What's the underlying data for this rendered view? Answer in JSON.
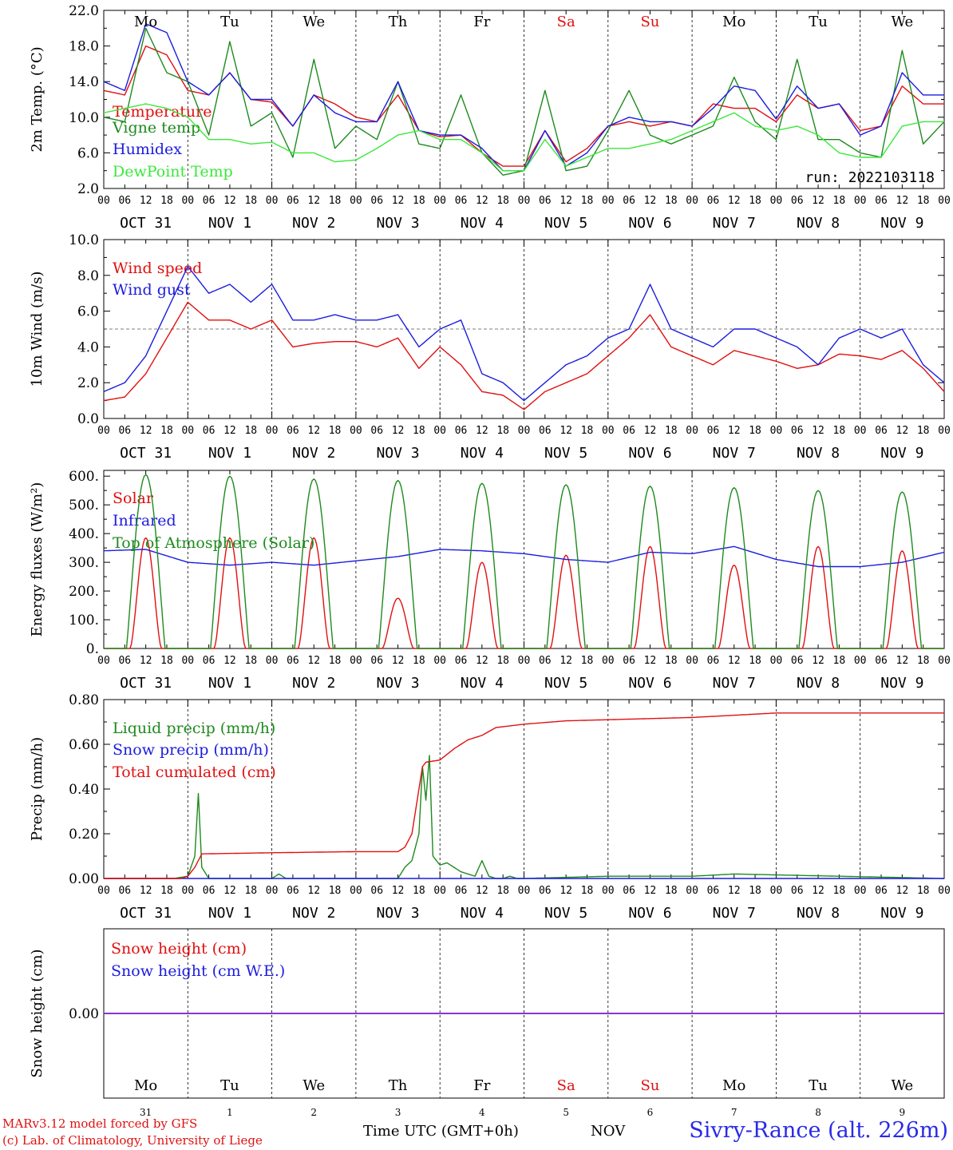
{
  "colors": {
    "red": "#e01010",
    "blue": "#1c1ce0",
    "green": "#1e8a1e",
    "lightgreen": "#3ce83c",
    "purple": "#8a2be2",
    "weekend": "#e01010",
    "weekday": "#000000"
  },
  "days": {
    "names": [
      "Mo",
      "Tu",
      "We",
      "Th",
      "Fr",
      "Sa",
      "Su",
      "Mo",
      "Tu",
      "We"
    ],
    "weekend": [
      false,
      false,
      false,
      false,
      false,
      true,
      true,
      false,
      false,
      false
    ],
    "dates": [
      "OCT 31",
      "NOV  1",
      "NOV  2",
      "NOV  3",
      "NOV  4",
      "NOV  5",
      "NOV  6",
      "NOV  7",
      "NOV  8",
      "NOV  9"
    ],
    "day_numbers": [
      "31",
      "1",
      "2",
      "3",
      "4",
      "5",
      "6",
      "7",
      "8",
      "9"
    ],
    "hour_ticks": [
      "00",
      "06",
      "12",
      "18"
    ],
    "end_tick": "00"
  },
  "footer": {
    "credit_line1": "MARv3.12 model forced by GFS",
    "credit_line2": "(c) Lab. of Climatology, University of Liege",
    "time_label": "Time UTC (GMT+0h)",
    "month": "NOV",
    "station": "Sivry-Rance (alt. 226m)"
  },
  "chart_data": [
    {
      "id": "temp",
      "type": "line",
      "ylabel": "2m Temp. (°C)",
      "ylim": [
        2.0,
        22.0
      ],
      "yticks": [
        "2.0",
        "6.0",
        "10.0",
        "14.0",
        "18.0",
        "22.0"
      ],
      "annotation": "run: 2022103118",
      "series": [
        {
          "name": "Temperature",
          "color": "red",
          "x": [
            0,
            6,
            12,
            18,
            24,
            30,
            36,
            42,
            48,
            54,
            60,
            66,
            72,
            78,
            84,
            90,
            96,
            102,
            108,
            114,
            120,
            126,
            132,
            138,
            144,
            150,
            156,
            162,
            168,
            174,
            180,
            186,
            192,
            198,
            204,
            210,
            216,
            222,
            228,
            234,
            240
          ],
          "values": [
            13,
            12.5,
            18,
            17,
            13,
            12.5,
            15,
            12,
            11.7,
            9,
            12.5,
            11.5,
            10,
            9.5,
            12.5,
            8.5,
            7.8,
            8,
            6,
            4.5,
            4.5,
            8.5,
            5,
            6.5,
            9,
            9.5,
            9,
            9.5,
            9,
            11.5,
            11,
            11,
            9.5,
            12.5,
            11,
            11.5,
            8.5,
            9,
            13.5,
            11.5,
            11.5
          ]
        },
        {
          "name": "Vigne temp",
          "color": "green",
          "x": [
            0,
            6,
            12,
            18,
            24,
            30,
            36,
            42,
            48,
            54,
            60,
            66,
            72,
            78,
            84,
            90,
            96,
            102,
            108,
            114,
            120,
            126,
            132,
            138,
            144,
            150,
            156,
            162,
            168,
            174,
            180,
            186,
            192,
            198,
            204,
            210,
            216,
            222,
            228,
            234,
            240
          ],
          "values": [
            10,
            9.5,
            20,
            15,
            14,
            8,
            18.5,
            9,
            10.5,
            5.5,
            16.5,
            6.5,
            9,
            7.5,
            14,
            7,
            6.5,
            12.5,
            6,
            3.5,
            4,
            13,
            4,
            4.5,
            8.5,
            13,
            8,
            7,
            8,
            9,
            14.5,
            9.5,
            7.5,
            16.5,
            7.5,
            7.5,
            6,
            5.5,
            17.5,
            7,
            9.5
          ]
        },
        {
          "name": "Humidex",
          "color": "blue",
          "x": [
            0,
            6,
            12,
            18,
            24,
            30,
            36,
            42,
            48,
            54,
            60,
            66,
            72,
            78,
            84,
            90,
            96,
            102,
            108,
            114,
            120,
            126,
            132,
            138,
            144,
            150,
            156,
            162,
            168,
            174,
            180,
            186,
            192,
            198,
            204,
            210,
            216,
            222,
            228,
            234,
            240
          ],
          "values": [
            14,
            13,
            20.5,
            19.5,
            14,
            12.5,
            15,
            12,
            12,
            9,
            12.5,
            10.5,
            9.5,
            9.5,
            14,
            8.5,
            8,
            8,
            6.5,
            4,
            4,
            8.5,
            4.5,
            6,
            9,
            10,
            9.5,
            9.5,
            9,
            11,
            13.5,
            13,
            9.8,
            13.5,
            11,
            11.5,
            8,
            9,
            15,
            12.5,
            12.5
          ]
        },
        {
          "name": "DewPoint Temp",
          "color": "lightgreen",
          "x": [
            0,
            6,
            12,
            18,
            24,
            30,
            36,
            42,
            48,
            54,
            60,
            66,
            72,
            78,
            84,
            90,
            96,
            102,
            108,
            114,
            120,
            126,
            132,
            138,
            144,
            150,
            156,
            162,
            168,
            174,
            180,
            186,
            192,
            198,
            204,
            210,
            216,
            222,
            228,
            234,
            240
          ],
          "values": [
            10.5,
            11,
            11.5,
            11,
            10,
            7.5,
            7.5,
            7,
            7.2,
            6,
            6,
            5,
            5.2,
            6.5,
            8,
            8.5,
            7.5,
            7.5,
            6,
            4,
            4,
            7.5,
            4.5,
            5.5,
            6.5,
            6.5,
            7,
            7.5,
            8.5,
            9.5,
            10.5,
            9,
            8.5,
            9,
            8,
            6,
            5.5,
            5.5,
            9,
            9.5,
            9.5
          ]
        }
      ]
    },
    {
      "id": "wind",
      "type": "line",
      "ylabel": "10m Wind (m/s)",
      "ylim": [
        0.0,
        10.0
      ],
      "yticks": [
        "0.0",
        "2.0",
        "4.0",
        "6.0",
        "8.0",
        "10.0"
      ],
      "reference_line": 5.0,
      "series": [
        {
          "name": "Wind speed",
          "color": "red",
          "x": [
            0,
            6,
            12,
            18,
            24,
            30,
            36,
            42,
            48,
            54,
            60,
            66,
            72,
            78,
            84,
            90,
            96,
            102,
            108,
            114,
            120,
            126,
            132,
            138,
            144,
            150,
            156,
            162,
            168,
            174,
            180,
            186,
            192,
            198,
            204,
            210,
            216,
            222,
            228,
            234,
            240
          ],
          "values": [
            1,
            1.2,
            2.5,
            4.5,
            6.5,
            5.5,
            5.5,
            5,
            5.5,
            4,
            4.2,
            4.3,
            4.3,
            4,
            4.5,
            2.8,
            4,
            3,
            1.5,
            1.3,
            0.5,
            1.5,
            2,
            2.5,
            3.5,
            4.5,
            5.8,
            4,
            3.5,
            3,
            3.8,
            3.5,
            3.2,
            2.8,
            3,
            3.6,
            3.5,
            3.3,
            3.8,
            2.8,
            1.5
          ]
        },
        {
          "name": "Wind gust",
          "color": "blue",
          "x": [
            0,
            6,
            12,
            18,
            24,
            30,
            36,
            42,
            48,
            54,
            60,
            66,
            72,
            78,
            84,
            90,
            96,
            102,
            108,
            114,
            120,
            126,
            132,
            138,
            144,
            150,
            156,
            162,
            168,
            174,
            180,
            186,
            192,
            198,
            204,
            210,
            216,
            222,
            228,
            234,
            240
          ],
          "values": [
            1.5,
            2,
            3.5,
            6,
            8.5,
            7,
            7.5,
            6.5,
            7.5,
            5.5,
            5.5,
            5.8,
            5.5,
            5.5,
            5.8,
            4,
            5,
            5.5,
            2.5,
            2,
            1,
            2,
            3,
            3.5,
            4.5,
            5,
            7.5,
            5,
            4.5,
            4,
            5,
            5,
            4.5,
            4,
            3,
            4.5,
            5,
            4.5,
            5,
            3,
            2
          ]
        }
      ]
    },
    {
      "id": "energy",
      "type": "line",
      "ylabel": "Energy fluxes (W/m²)",
      "ylim": [
        0,
        620
      ],
      "yticks": [
        "0.",
        "100.",
        "200.",
        "300.",
        "400.",
        "500.",
        "600."
      ],
      "ytick_values": [
        0,
        100,
        200,
        300,
        400,
        500,
        600
      ],
      "series": [
        {
          "name": "Solar",
          "color": "red",
          "diurnal_peaks": [
            385,
            385,
            385,
            175,
            300,
            325,
            355,
            290,
            355,
            340
          ]
        },
        {
          "name": "Infrared",
          "color": "blue",
          "x": [
            0,
            12,
            24,
            36,
            48,
            60,
            72,
            84,
            96,
            108,
            120,
            132,
            144,
            156,
            168,
            180,
            192,
            204,
            216,
            228,
            240
          ],
          "values": [
            340,
            345,
            300,
            290,
            300,
            290,
            305,
            320,
            345,
            340,
            330,
            310,
            300,
            335,
            330,
            355,
            310,
            285,
            285,
            300,
            335
          ]
        },
        {
          "name": "Top of Atmosphere (Solar)",
          "color": "green",
          "diurnal_peaks": [
            605,
            600,
            590,
            585,
            575,
            570,
            565,
            560,
            550,
            545
          ]
        }
      ]
    },
    {
      "id": "precip",
      "type": "line",
      "ylabel": "Precip (mm/h)",
      "ylim": [
        0.0,
        0.8
      ],
      "yticks": [
        "0.00",
        "0.20",
        "0.40",
        "0.60",
        "0.80"
      ],
      "series": [
        {
          "name": "Liquid precip (mm/h)",
          "color": "green",
          "x": [
            0,
            20,
            24,
            26,
            27,
            28,
            30,
            48,
            50,
            52,
            84,
            86,
            88,
            90,
            91,
            92,
            93,
            94,
            96,
            98,
            100,
            102,
            104,
            106,
            108,
            110,
            112,
            114,
            116,
            118,
            120,
            144,
            168,
            180,
            240
          ],
          "values": [
            0,
            0,
            0.01,
            0.1,
            0.38,
            0.05,
            0,
            0,
            0.02,
            0,
            0,
            0.05,
            0.08,
            0.2,
            0.5,
            0.35,
            0.55,
            0.1,
            0.06,
            0.07,
            0.05,
            0.03,
            0.02,
            0.01,
            0.08,
            0.01,
            0,
            0,
            0.01,
            0,
            0,
            0.01,
            0.01,
            0.02,
            0
          ]
        },
        {
          "name": "Snow precip (mm/h)",
          "color": "blue",
          "x": [
            0,
            240
          ],
          "values": [
            0,
            0
          ]
        },
        {
          "name": "Total cumulated (cm)",
          "color": "red",
          "x": [
            0,
            22,
            24,
            26,
            28,
            48,
            72,
            84,
            86,
            88,
            90,
            91,
            92,
            96,
            100,
            104,
            108,
            112,
            120,
            132,
            144,
            156,
            168,
            180,
            192,
            240
          ],
          "values": [
            0,
            0,
            0.01,
            0.05,
            0.11,
            0.115,
            0.12,
            0.12,
            0.14,
            0.2,
            0.4,
            0.5,
            0.52,
            0.53,
            0.58,
            0.62,
            0.64,
            0.675,
            0.69,
            0.705,
            0.71,
            0.715,
            0.72,
            0.73,
            0.74,
            0.74
          ]
        }
      ]
    },
    {
      "id": "snow",
      "type": "line",
      "ylabel": "Snow height (cm)",
      "yticks": [
        "0.00"
      ],
      "series": [
        {
          "name": "Snow height (cm)",
          "color": "red",
          "x": [
            0,
            240
          ],
          "values": [
            0,
            0
          ]
        },
        {
          "name": "Snow height (cm W.E.)",
          "color": "blue",
          "x": [
            0,
            240
          ],
          "values": [
            0,
            0
          ]
        }
      ]
    }
  ]
}
